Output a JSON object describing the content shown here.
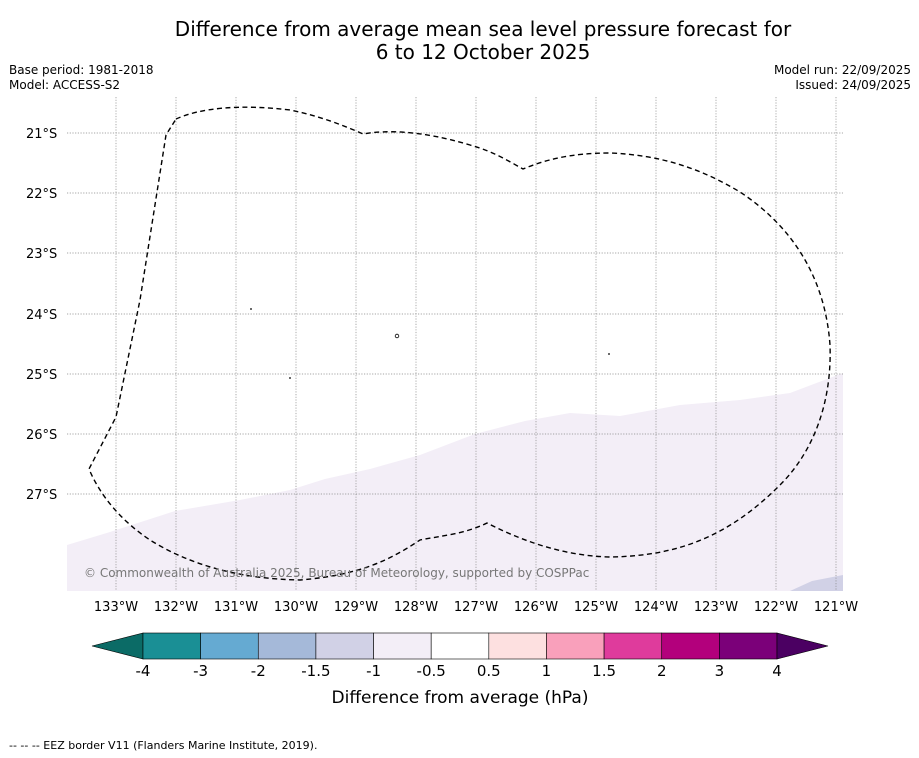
{
  "title_line1": "Difference from average mean sea level pressure forecast for",
  "title_line2": "6 to 12 October 2025",
  "base_period": "Base period: 1981-2018",
  "model": "Model: ACCESS-S2",
  "model_run": "Model run: 22/09/2025",
  "issued": "Issued: 24/09/2025",
  "lat_labels": [
    "21°S",
    "22°S",
    "23°S",
    "24°S",
    "25°S",
    "26°S",
    "27°S"
  ],
  "lon_labels": [
    "133°W",
    "132°W",
    "131°W",
    "130°W",
    "129°W",
    "128°W",
    "127°W",
    "126°W",
    "125°W",
    "124°W",
    "123°W",
    "122°W",
    "121°W"
  ],
  "copyright": "© Commonwealth of Australia 2025, Bureau of Meteorology, supported by COSPPac",
  "colorbar": {
    "title": "Difference from average (hPa)",
    "tick_labels": [
      "-4",
      "-3",
      "-2",
      "-1.5",
      "-1",
      "-0.5",
      "0.5",
      "1",
      "1.5",
      "2",
      "3",
      "4"
    ],
    "colors": [
      "#1a8f95",
      "#65aad2",
      "#a5b9d9",
      "#d1d1e6",
      "#f3eef7",
      "#ffffff",
      "#fde0e0",
      "#f9a0bb",
      "#df3b9c",
      "#b3007c",
      "#7b0079"
    ],
    "under_color": "#0b6b66",
    "over_color": "#4b0062"
  },
  "footer": "--  --  -- EEZ border V11 (Flanders Marine Institute, 2019)."
}
